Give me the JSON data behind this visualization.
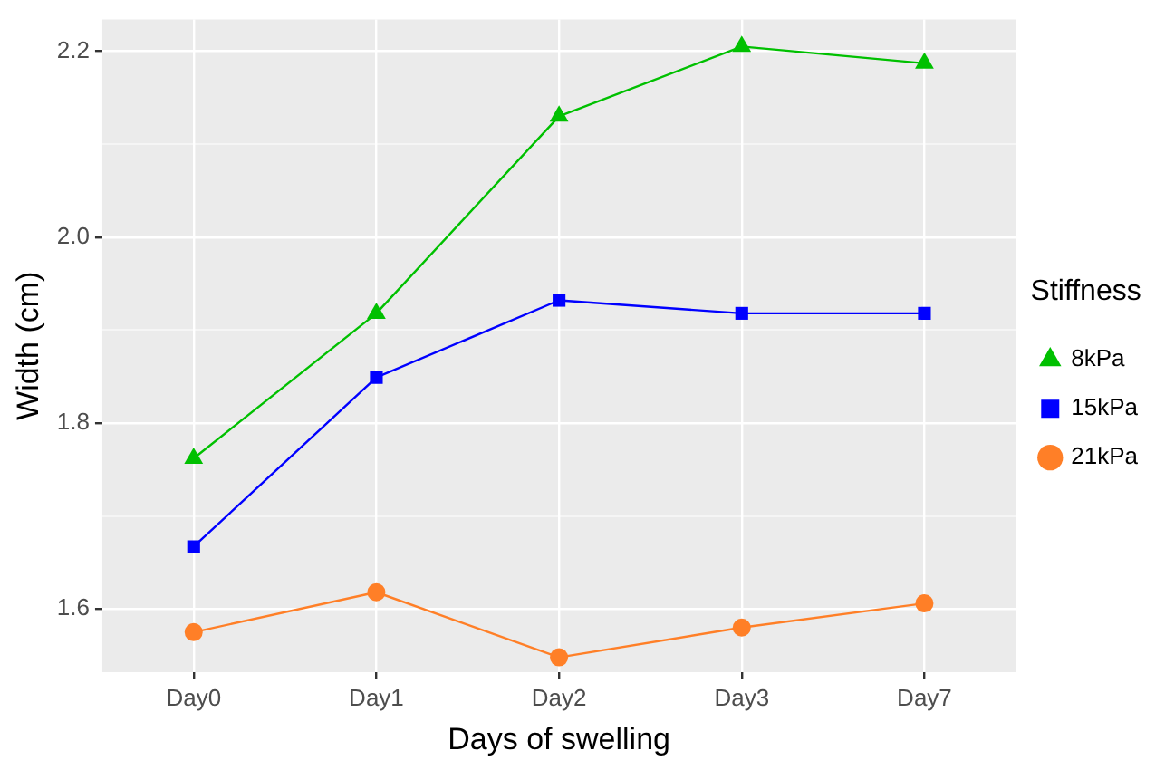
{
  "chart_data": {
    "type": "line",
    "xlabel": "Days of swelling",
    "ylabel": "Width (cm)",
    "legend_title": "Stiffness",
    "categories": [
      "Day0",
      "Day1",
      "Day2",
      "Day3",
      "Day7"
    ],
    "series": [
      {
        "name": "8kPa",
        "color": "#00c000",
        "marker": "triangle",
        "values": [
          1.762,
          1.918,
          2.13,
          2.205,
          2.187
        ]
      },
      {
        "name": "15kPa",
        "color": "#0000ff",
        "marker": "square",
        "values": [
          1.667,
          1.849,
          1.932,
          1.918,
          1.918
        ]
      },
      {
        "name": "21kPa",
        "color": "#ff7f27",
        "marker": "circle",
        "values": [
          1.575,
          1.618,
          1.548,
          1.58,
          1.606
        ]
      }
    ],
    "ylim": [
      1.532,
      2.234
    ],
    "yticks": [
      {
        "value": 1.7,
        "label": null
      },
      {
        "value": 1.9,
        "label": null
      },
      {
        "value": 2.1,
        "label": null
      },
      {
        "value": 1.6,
        "label": "1.6"
      },
      {
        "value": 1.8,
        "label": "1.8"
      },
      {
        "value": 2.0,
        "label": "2.0"
      },
      {
        "value": 2.2,
        "label": "2.2"
      }
    ],
    "grid": true,
    "legend": "right",
    "line_style": "solid"
  }
}
